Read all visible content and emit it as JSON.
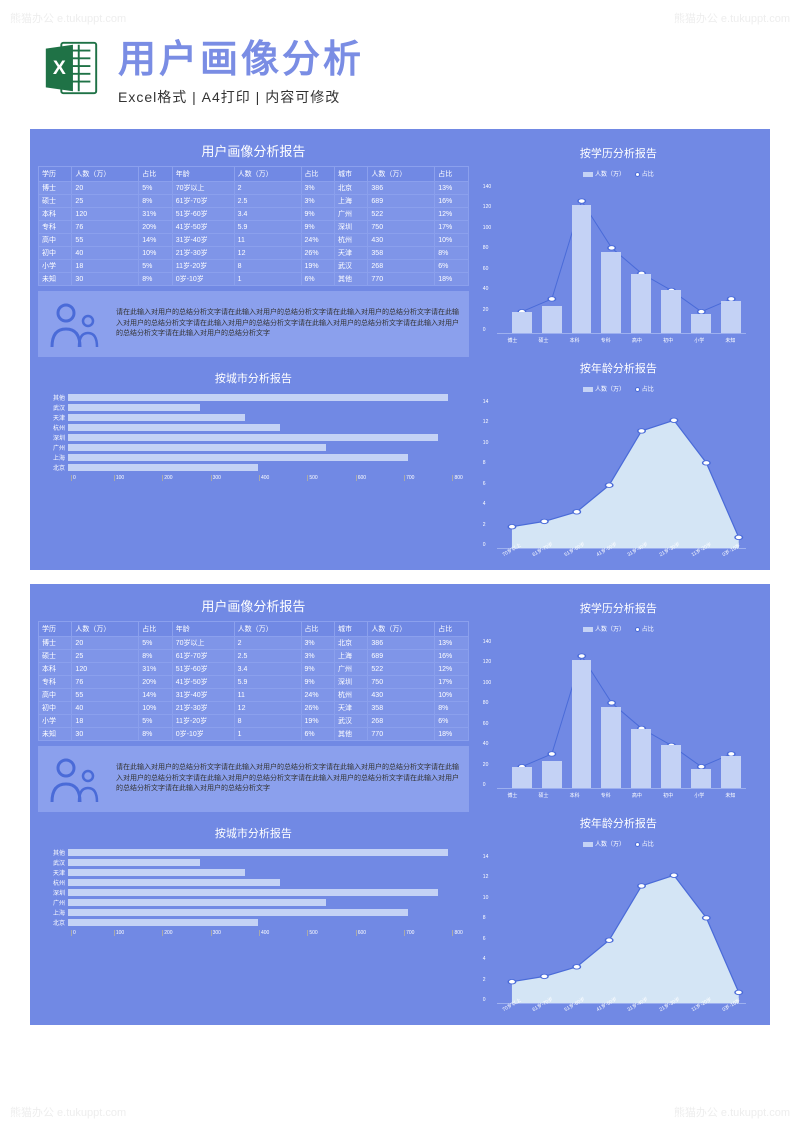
{
  "header": {
    "main_title": "用户画像分析",
    "sub_title": "Excel格式 | A4打印 | 内容可修改"
  },
  "watermark": "熊猫办公 e.tukuppt.com",
  "dashboard": {
    "report_title": "用户画像分析报告",
    "table": {
      "columns": [
        "学历",
        "人数（万）",
        "占比",
        "年龄",
        "人数（万）",
        "占比",
        "城市",
        "人数（万）",
        "占比"
      ],
      "rows": [
        [
          "博士",
          "20",
          "5%",
          "70岁以上",
          "2",
          "3%",
          "北京",
          "386",
          "13%"
        ],
        [
          "硕士",
          "25",
          "8%",
          "61岁-70岁",
          "2.5",
          "3%",
          "上海",
          "689",
          "16%"
        ],
        [
          "本科",
          "120",
          "31%",
          "51岁-60岁",
          "3.4",
          "9%",
          "广州",
          "522",
          "12%"
        ],
        [
          "专科",
          "76",
          "20%",
          "41岁-50岁",
          "5.9",
          "9%",
          "深圳",
          "750",
          "17%"
        ],
        [
          "高中",
          "55",
          "14%",
          "31岁-40岁",
          "11",
          "24%",
          "杭州",
          "430",
          "10%"
        ],
        [
          "初中",
          "40",
          "10%",
          "21岁-30岁",
          "12",
          "26%",
          "天津",
          "358",
          "8%"
        ],
        [
          "小学",
          "18",
          "5%",
          "11岁-20岁",
          "8",
          "19%",
          "武汉",
          "268",
          "6%"
        ],
        [
          "未知",
          "30",
          "8%",
          "0岁-10岁",
          "1",
          "6%",
          "其他",
          "770",
          "18%"
        ]
      ]
    },
    "summary_text": "请在此输入对用户的总结分析文字请在此输入对用户的总结分析文字请在此输入对用户的总结分析文字请在此输入对用户的总结分析文字请在此输入对用户的总结分析文字请在此输入对用户的总结分析文字请在此输入对用户的总结分析文字请在此输入对用户的总结分析文字",
    "city_chart": {
      "title": "按城市分析报告",
      "labels": [
        "其他",
        "武汉",
        "天津",
        "杭州",
        "深圳",
        "广州",
        "上海",
        "北京"
      ],
      "values": [
        770,
        268,
        358,
        430,
        750,
        522,
        689,
        386
      ],
      "max": 800,
      "ticks": [
        0,
        100,
        200,
        300,
        400,
        500,
        600,
        700,
        800
      ],
      "bar_color": "#c4d2f5"
    },
    "edu_chart": {
      "title": "按学历分析报告",
      "legend": [
        "人数（万）",
        "占比"
      ],
      "labels": [
        "博士",
        "硕士",
        "本科",
        "专科",
        "高中",
        "初中",
        "小学",
        "未知"
      ],
      "bars": [
        20,
        25,
        120,
        76,
        55,
        40,
        18,
        30
      ],
      "line": [
        5,
        8,
        31,
        20,
        14,
        10,
        5,
        8
      ],
      "ymax": 140,
      "yticks": [
        0,
        20,
        40,
        60,
        80,
        100,
        120,
        140
      ],
      "line_max": 35,
      "bar_color": "#c4d2f5",
      "line_color": "#4a6bd8"
    },
    "age_chart": {
      "title": "按年龄分析报告",
      "legend": [
        "人数（万）",
        "占比"
      ],
      "labels": [
        "70岁以上",
        "61岁-70岁",
        "51岁-60岁",
        "41岁-50岁",
        "31岁-40岁",
        "21岁-30岁",
        "11岁-20岁",
        "0岁-10岁"
      ],
      "area": [
        2,
        2.5,
        3.4,
        5.9,
        11,
        12,
        8,
        1
      ],
      "line2": [
        3,
        3,
        9,
        9,
        24,
        26,
        19,
        6
      ],
      "ymax": 14,
      "yticks": [
        0,
        2,
        4,
        6,
        8,
        10,
        12,
        14
      ],
      "area_color": "#d4e5f5",
      "line_color": "#4a6bd8"
    }
  },
  "colors": {
    "bg": "#7189e4",
    "bg_light": "#8ba0ed",
    "bar": "#c4d2f5",
    "accent": "#4a6bd8"
  }
}
